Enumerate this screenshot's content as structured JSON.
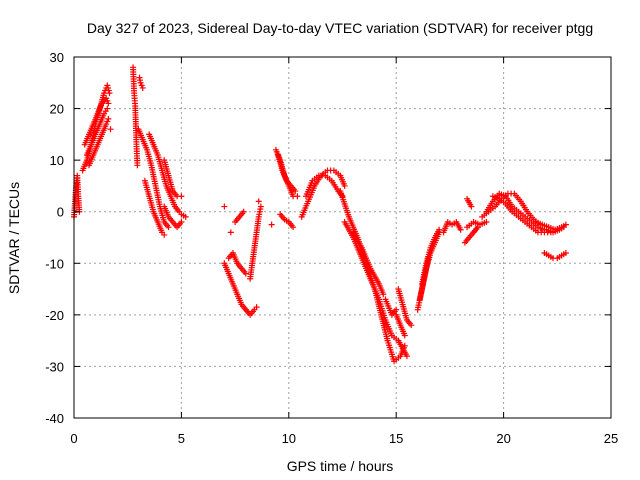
{
  "chart_data": {
    "type": "scatter",
    "title": "Day 327 of 2023, Sidereal Day-to-day VTEC variation (SDTVAR) for receiver ptgg",
    "xlabel": "GPS time / hours",
    "ylabel": "SDTVAR / TECUs",
    "xlim": [
      0,
      25
    ],
    "ylim": [
      -40,
      30
    ],
    "xticks": [
      0,
      5,
      10,
      15,
      20,
      25
    ],
    "yticks": [
      -40,
      -30,
      -20,
      -10,
      0,
      10,
      20,
      30
    ],
    "grid": true,
    "marker": "+",
    "color": "#ff0000",
    "tracks": [
      [
        [
          0.0,
          -1
        ],
        [
          0.05,
          2
        ],
        [
          0.1,
          5
        ],
        [
          0.15,
          7
        ],
        [
          0.2,
          3
        ],
        [
          0.25,
          0
        ]
      ],
      [
        [
          0.4,
          8
        ],
        [
          0.6,
          10
        ],
        [
          0.8,
          13
        ],
        [
          1.0,
          17
        ],
        [
          1.2,
          20
        ],
        [
          1.4,
          23
        ],
        [
          1.55,
          24.5
        ],
        [
          1.65,
          23
        ]
      ],
      [
        [
          0.5,
          13
        ],
        [
          0.7,
          15
        ],
        [
          0.9,
          17
        ],
        [
          1.1,
          19
        ],
        [
          1.3,
          21
        ],
        [
          1.5,
          22
        ],
        [
          1.6,
          21
        ]
      ],
      [
        [
          0.6,
          11
        ],
        [
          0.8,
          13
        ],
        [
          1.0,
          15
        ],
        [
          1.2,
          17
        ],
        [
          1.4,
          19
        ],
        [
          1.55,
          20
        ]
      ],
      [
        [
          0.7,
          9
        ],
        [
          0.9,
          11
        ],
        [
          1.1,
          13
        ],
        [
          1.3,
          15
        ],
        [
          1.5,
          17
        ],
        [
          1.6,
          18
        ]
      ],
      [
        [
          1.7,
          16
        ]
      ],
      [
        [
          2.75,
          28
        ],
        [
          2.8,
          23
        ],
        [
          2.85,
          20.5
        ],
        [
          2.9,
          14
        ],
        [
          2.95,
          9
        ]
      ],
      [
        [
          3.05,
          26
        ],
        [
          3.1,
          25
        ],
        [
          3.2,
          24
        ]
      ],
      [
        [
          3.0,
          16
        ],
        [
          3.2,
          14
        ],
        [
          3.4,
          12
        ],
        [
          3.6,
          9
        ],
        [
          3.8,
          5
        ],
        [
          4.0,
          1
        ],
        [
          4.2,
          -2
        ],
        [
          4.4,
          -3
        ]
      ],
      [
        [
          3.3,
          6
        ],
        [
          3.5,
          3
        ],
        [
          3.7,
          0
        ],
        [
          3.9,
          -2
        ],
        [
          4.1,
          -4
        ],
        [
          4.2,
          -4.5
        ]
      ],
      [
        [
          3.5,
          15
        ],
        [
          3.7,
          13
        ],
        [
          3.9,
          11
        ],
        [
          4.1,
          8
        ],
        [
          4.3,
          5
        ],
        [
          4.5,
          3
        ],
        [
          4.7,
          1
        ],
        [
          4.9,
          0
        ]
      ],
      [
        [
          4.2,
          10
        ],
        [
          4.4,
          7
        ],
        [
          4.6,
          4
        ],
        [
          4.8,
          3
        ],
        [
          5.0,
          3
        ]
      ],
      [
        [
          4.2,
          1
        ],
        [
          4.4,
          -1
        ],
        [
          4.6,
          -2
        ],
        [
          4.8,
          -3
        ],
        [
          5.0,
          -2
        ]
      ],
      [
        [
          5.0,
          -0.5
        ],
        [
          5.2,
          -1
        ]
      ],
      [
        [
          7.0,
          -10
        ],
        [
          7.2,
          -12
        ],
        [
          7.4,
          -14
        ],
        [
          7.6,
          -16
        ],
        [
          7.8,
          -18
        ],
        [
          8.0,
          -19
        ]
      ],
      [
        [
          7.2,
          -9
        ],
        [
          7.4,
          -8
        ],
        [
          7.6,
          -10
        ],
        [
          7.8,
          -11
        ],
        [
          8.0,
          -12
        ]
      ],
      [
        [
          7.5,
          -2
        ],
        [
          7.7,
          -1
        ],
        [
          7.9,
          0
        ]
      ],
      [
        [
          7.3,
          -4
        ]
      ],
      [
        [
          7.0,
          1
        ]
      ],
      [
        [
          8.0,
          -19
        ],
        [
          8.2,
          -20
        ],
        [
          8.4,
          -19
        ],
        [
          8.5,
          -18.5
        ]
      ],
      [
        [
          8.2,
          -13
        ],
        [
          8.3,
          -10
        ],
        [
          8.4,
          -7
        ],
        [
          8.5,
          -4
        ],
        [
          8.6,
          -1
        ],
        [
          8.7,
          1
        ]
      ],
      [
        [
          8.6,
          2
        ]
      ],
      [
        [
          9.2,
          -2.5
        ]
      ],
      [
        [
          9.4,
          12
        ],
        [
          9.6,
          10
        ],
        [
          9.8,
          7
        ],
        [
          10.0,
          5
        ],
        [
          10.2,
          3
        ],
        [
          10.4,
          3
        ]
      ],
      [
        [
          9.5,
          11
        ],
        [
          9.7,
          8
        ],
        [
          9.9,
          6
        ],
        [
          10.1,
          5
        ],
        [
          10.3,
          4
        ]
      ],
      [
        [
          9.6,
          -0.5
        ],
        [
          9.8,
          -1.5
        ],
        [
          10.0,
          -2
        ],
        [
          10.2,
          -3
        ]
      ],
      [
        [
          10.6,
          -1
        ],
        [
          10.9,
          2
        ],
        [
          11.2,
          5
        ],
        [
          11.5,
          7
        ],
        [
          11.8,
          8
        ],
        [
          12.1,
          8
        ],
        [
          12.4,
          7
        ],
        [
          12.6,
          5
        ]
      ],
      [
        [
          10.8,
          3
        ],
        [
          11.1,
          6
        ],
        [
          11.4,
          7
        ],
        [
          11.7,
          7
        ],
        [
          12.0,
          6
        ],
        [
          12.3,
          4
        ],
        [
          12.5,
          3
        ]
      ],
      [
        [
          12.4,
          4
        ],
        [
          12.8,
          -1
        ],
        [
          13.2,
          -5
        ],
        [
          13.6,
          -10
        ],
        [
          14.0,
          -15
        ],
        [
          14.3,
          -20
        ],
        [
          14.6,
          -25
        ],
        [
          14.9,
          -29
        ],
        [
          15.2,
          -28
        ],
        [
          15.4,
          -26
        ]
      ],
      [
        [
          12.6,
          -2
        ],
        [
          13.0,
          -5
        ],
        [
          13.4,
          -9
        ],
        [
          13.8,
          -13
        ],
        [
          14.2,
          -17
        ],
        [
          14.5,
          -21
        ],
        [
          14.8,
          -24
        ],
        [
          15.1,
          -25
        ],
        [
          15.5,
          -28
        ]
      ],
      [
        [
          13.0,
          -4
        ],
        [
          13.4,
          -7
        ],
        [
          13.8,
          -11
        ],
        [
          14.2,
          -14
        ],
        [
          14.4,
          -16
        ]
      ],
      [
        [
          14.5,
          -17
        ],
        [
          14.8,
          -20
        ],
        [
          15.0,
          -19
        ]
      ],
      [
        [
          15.1,
          -15
        ],
        [
          15.3,
          -18
        ],
        [
          15.5,
          -21
        ],
        [
          15.7,
          -22
        ]
      ],
      [
        [
          15.0,
          -20
        ],
        [
          15.2,
          -22
        ],
        [
          15.4,
          -24
        ]
      ],
      [
        [
          16.0,
          -19
        ],
        [
          16.2,
          -15
        ],
        [
          16.4,
          -11
        ],
        [
          16.6,
          -8
        ],
        [
          16.8,
          -6
        ],
        [
          17.0,
          -4
        ]
      ],
      [
        [
          16.2,
          -14
        ],
        [
          16.4,
          -10
        ],
        [
          16.6,
          -7
        ],
        [
          16.8,
          -5
        ],
        [
          17.0,
          -3.5
        ]
      ],
      [
        [
          16.1,
          -17
        ],
        [
          16.3,
          -13
        ],
        [
          16.5,
          -9
        ]
      ],
      [
        [
          17.2,
          -4
        ],
        [
          17.4,
          -2
        ],
        [
          17.6,
          -2.5
        ],
        [
          17.8,
          -2
        ],
        [
          18.0,
          -3.5
        ]
      ],
      [
        [
          18.2,
          -6
        ],
        [
          18.4,
          -5
        ],
        [
          18.6,
          -4
        ],
        [
          18.8,
          -3
        ]
      ],
      [
        [
          18.3,
          -3
        ],
        [
          18.6,
          -2
        ],
        [
          18.9,
          -2.5
        ],
        [
          19.2,
          -2
        ]
      ],
      [
        [
          18.3,
          2.5
        ],
        [
          18.5,
          1
        ]
      ],
      [
        [
          18.6,
          -4
        ],
        [
          18.8,
          -3
        ]
      ],
      [
        [
          19.0,
          -1
        ],
        [
          19.3,
          0
        ],
        [
          19.6,
          1
        ],
        [
          19.9,
          2.5
        ],
        [
          20.2,
          3.5
        ],
        [
          20.5,
          3.5
        ],
        [
          20.8,
          2
        ],
        [
          21.1,
          0
        ],
        [
          21.4,
          -1.5
        ],
        [
          21.7,
          -2.5
        ]
      ],
      [
        [
          19.2,
          0
        ],
        [
          19.5,
          2
        ],
        [
          19.8,
          3.5
        ],
        [
          20.1,
          3
        ],
        [
          20.4,
          1
        ],
        [
          20.7,
          0
        ],
        [
          21.0,
          -1
        ],
        [
          21.3,
          -2
        ],
        [
          21.6,
          -3
        ],
        [
          21.9,
          -3.5
        ]
      ],
      [
        [
          19.5,
          3
        ],
        [
          19.8,
          2.5
        ],
        [
          20.1,
          1.5
        ],
        [
          20.4,
          0
        ],
        [
          20.7,
          -1
        ],
        [
          21.0,
          -2
        ],
        [
          21.3,
          -3
        ],
        [
          21.6,
          -4
        ],
        [
          21.9,
          -4
        ],
        [
          22.2,
          -4
        ]
      ],
      [
        [
          21.5,
          -2
        ],
        [
          21.8,
          -2.5
        ],
        [
          22.1,
          -3
        ],
        [
          22.4,
          -3.5
        ],
        [
          22.7,
          -3
        ],
        [
          22.9,
          -2.5
        ]
      ],
      [
        [
          22.0,
          -3.5
        ],
        [
          22.3,
          -4
        ],
        [
          22.6,
          -3.5
        ],
        [
          22.8,
          -3
        ]
      ],
      [
        [
          21.9,
          -8
        ],
        [
          22.1,
          -8.5
        ],
        [
          22.3,
          -9
        ],
        [
          22.5,
          -9
        ],
        [
          22.7,
          -8.5
        ],
        [
          22.9,
          -8
        ]
      ]
    ]
  }
}
